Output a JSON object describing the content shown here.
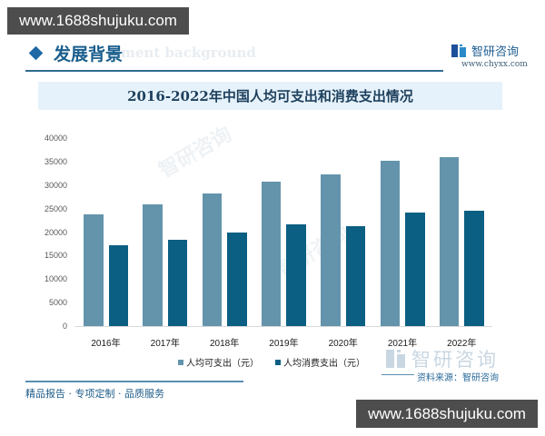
{
  "watermark": {
    "top_url": "www.1688shujuku.com",
    "bottom_url": "www.1688shujuku.com"
  },
  "header": {
    "section_title": "发展背景",
    "section_subtitle_ghost": "ment background",
    "icon": "diamond-icon",
    "logo_name": "智研咨询",
    "logo_url": "www.chyxx.com"
  },
  "colors": {
    "disposable": "#6394ac",
    "consumption": "#0b5f82",
    "accent": "#1b5f8e",
    "title_band": "#e6f2fb"
  },
  "chart_data": {
    "type": "bar",
    "title": "2016-2022年中国人均可支出和消费支出情况",
    "xlabel": "",
    "ylabel": "",
    "ylim": [
      0,
      40000
    ],
    "yticks": [
      "40000",
      "35000",
      "30000",
      "25000",
      "20000",
      "15000",
      "10000",
      "5000",
      "0"
    ],
    "categories": [
      "2016年",
      "2017年",
      "2018年",
      "2019年",
      "2020年",
      "2021年",
      "2022年"
    ],
    "series": [
      {
        "name": "人均可支出（元）",
        "color": "#6394ac",
        "values": [
          23821,
          25974,
          28228,
          30733,
          32189,
          35128,
          35900
        ]
      },
      {
        "name": "人均消费支出（元）",
        "color": "#0b5f82",
        "values": [
          17111,
          18322,
          19853,
          21559,
          21210,
          24100,
          24538
        ]
      }
    ],
    "grid": false,
    "legend_position": "bottom"
  },
  "footer": {
    "tagline": "精品报告 · 专项定制 · 品质服务",
    "source": "资料来源：智研咨询",
    "big_logo_text": "智研咨询"
  }
}
